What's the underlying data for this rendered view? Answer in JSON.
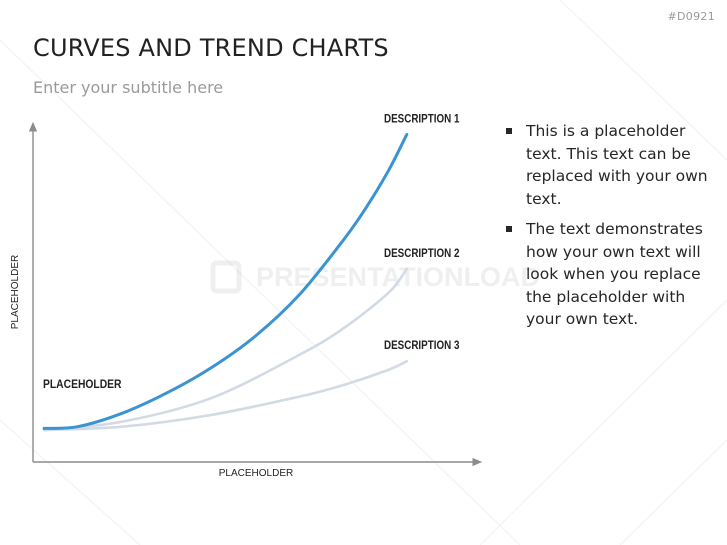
{
  "slide_id": "#D0921",
  "title": "CURVES AND TREND CHARTS",
  "subtitle": "Enter your subtitle here",
  "watermark": "PRESENTATIONLOAD",
  "bullets": [
    "This is a placeholder text. This text can be replaced with your own text.",
    "The text demonstrates how your own text will look when you replace the placeholder with your own text."
  ],
  "chart_data": {
    "type": "line",
    "xlabel": "PLACEHOLDER",
    "ylabel": "PLACEHOLDER",
    "start_label": "PLACEHOLDER",
    "xlim": [
      0,
      10
    ],
    "ylim": [
      0,
      10
    ],
    "grid": false,
    "series": [
      {
        "name": "DESCRIPTION 1",
        "color": "#3a93d2",
        "x": [
          0.25,
          1,
          2,
          3,
          4,
          5,
          6,
          7,
          7.5,
          8,
          8.4
        ],
        "y": [
          1.0,
          1.05,
          1.45,
          2.05,
          2.8,
          3.75,
          5.0,
          6.65,
          7.6,
          8.7,
          9.75
        ]
      },
      {
        "name": "DESCRIPTION 2",
        "color": "#d2dbe5",
        "x": [
          0.25,
          2,
          4,
          6,
          7,
          8,
          8.4
        ],
        "y": [
          0.95,
          1.2,
          1.9,
          3.2,
          4.0,
          5.05,
          5.75
        ]
      },
      {
        "name": "DESCRIPTION 3",
        "color": "#d2dbe5",
        "x": [
          0.25,
          2,
          4,
          6,
          7,
          8,
          8.4
        ],
        "y": [
          0.95,
          1.05,
          1.4,
          1.95,
          2.3,
          2.75,
          3.0
        ]
      }
    ]
  }
}
